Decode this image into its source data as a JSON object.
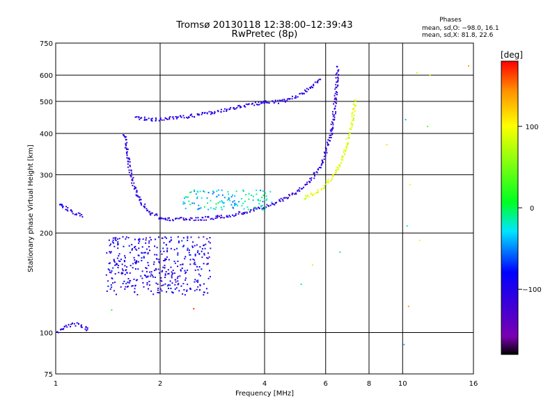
{
  "chart_data": {
    "type": "scatter",
    "title": "Tromsø 20130118 12:38:00–12:39:43",
    "subtitle": "RwPretec (8p)",
    "xlabel": "Frequency [MHz]",
    "ylabel": "Stationary phase Virtual Height [km]",
    "x_scale": "log",
    "y_scale": "log",
    "xlim": [
      1,
      16
    ],
    "ylim": [
      75,
      750
    ],
    "x_ticks": [
      1,
      2,
      4,
      6,
      8,
      10,
      16
    ],
    "x_tick_labels": [
      "1",
      "2",
      "4",
      "6",
      "8",
      "10",
      "16"
    ],
    "y_ticks": [
      75,
      100,
      200,
      300,
      400,
      500,
      600,
      750
    ],
    "y_tick_labels": [
      "75",
      "100",
      "200",
      "300",
      "400",
      "500",
      "600",
      "750"
    ],
    "grid": true,
    "legend": {
      "title": "Phases",
      "lines": [
        "mean, sd,O: −98.0, 16.1",
        "mean, sd,X:  81.8, 22.6"
      ],
      "placement": "top-right"
    },
    "colorbar": {
      "label": "[deg]",
      "range": [
        -180,
        180
      ],
      "ticks": [
        100,
        0,
        -100
      ],
      "tick_labels": [
        "100",
        "0",
        "−100"
      ],
      "colormap": "rainbow"
    },
    "series": [
      {
        "traces": [
          {
            "kind": "curve",
            "x": [
              1.58,
              1.6,
              1.63,
              1.67,
              1.72,
              1.8,
              1.9,
              2.0,
              2.2,
              2.5,
              2.8,
              3.2,
              3.6,
              4.0,
              4.5,
              5.0,
              5.5,
              5.9,
              6.2,
              6.35,
              6.45,
              6.5
            ],
            "y": [
              400,
              360,
              320,
              285,
              260,
              240,
              228,
              222,
              220,
              220,
              222,
              226,
              232,
              240,
              252,
              268,
              292,
              330,
              390,
              460,
              550,
              640
            ],
            "phase": -110
          },
          {
            "kind": "curve",
            "x": [
              5.2,
              5.8,
              6.2,
              6.6,
              6.9,
              7.1,
              7.25,
              7.3
            ],
            "y": [
              255,
              270,
              290,
              320,
              370,
              420,
              470,
              510
            ],
            "phase": 90
          },
          {
            "kind": "curve",
            "x": [
              1.7,
              2.0,
              2.3,
              2.6,
              2.9,
              3.2,
              3.6,
              4.0,
              4.5,
              5.0,
              5.4,
              5.8
            ],
            "y": [
              445,
              440,
              448,
              455,
              465,
              475,
              490,
              495,
              500,
              520,
              545,
              590
            ],
            "phase": -105
          },
          {
            "kind": "curve",
            "x": [
              1.0,
              1.05,
              1.1,
              1.15,
              1.2
            ],
            "y": [
              250,
              240,
              235,
              228,
              225
            ],
            "phase": -100
          },
          {
            "kind": "curve",
            "x": [
              1.0,
              1.05,
              1.1,
              1.15,
              1.2,
              1.25
            ],
            "y": [
              100,
              103,
              105,
              106,
              104,
              101
            ],
            "phase": -105
          },
          {
            "kind": "cloud",
            "x": [
              1.4,
              2.8
            ],
            "y": [
              130,
              195
            ],
            "phase": -100
          },
          {
            "kind": "cloud",
            "x": [
              2.3,
              4.2
            ],
            "y": [
              235,
              270
            ],
            "phase": -30
          }
        ]
      }
    ],
    "isolated_points": [
      {
        "x": 11.0,
        "y": 610,
        "phase": 80
      },
      {
        "x": 12.0,
        "y": 600,
        "phase": 120
      },
      {
        "x": 15.5,
        "y": 640,
        "phase": 140
      },
      {
        "x": 10.2,
        "y": 440,
        "phase": -40
      },
      {
        "x": 11.8,
        "y": 420,
        "phase": 40
      },
      {
        "x": 9.0,
        "y": 370,
        "phase": 110
      },
      {
        "x": 10.5,
        "y": 280,
        "phase": 90
      },
      {
        "x": 10.3,
        "y": 210,
        "phase": -20
      },
      {
        "x": 11.2,
        "y": 190,
        "phase": 90
      },
      {
        "x": 10.4,
        "y": 120,
        "phase": 140
      },
      {
        "x": 10.1,
        "y": 92,
        "phase": -40
      },
      {
        "x": 5.5,
        "y": 160,
        "phase": 110
      },
      {
        "x": 6.6,
        "y": 175,
        "phase": -20
      },
      {
        "x": 5.1,
        "y": 140,
        "phase": -20
      },
      {
        "x": 2.5,
        "y": 118,
        "phase": 170
      },
      {
        "x": 1.45,
        "y": 117,
        "phase": 20
      }
    ]
  }
}
